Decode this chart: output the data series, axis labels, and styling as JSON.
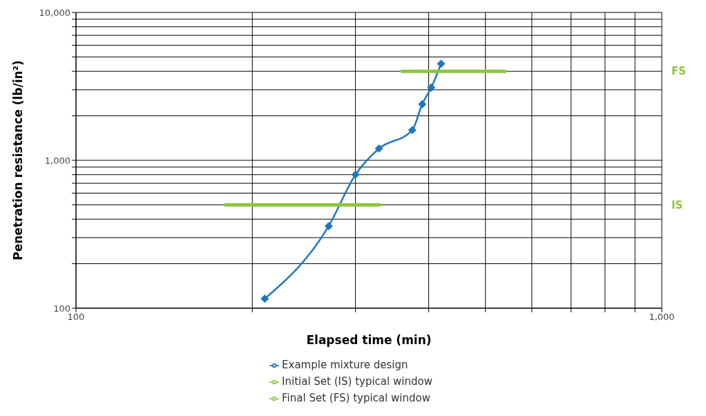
{
  "chart_data": {
    "type": "line",
    "xlabel": "Elapsed time (min)",
    "ylabel": "Penetration resistance (lb/in²)",
    "log": "xy",
    "xlim": [
      100,
      1000
    ],
    "ylim": [
      100,
      10000
    ],
    "xticks": [
      {
        "value": 100,
        "label": "100"
      },
      {
        "value": 200,
        "label": null
      },
      {
        "value": 300,
        "label": null
      },
      {
        "value": 400,
        "label": null
      },
      {
        "value": 500,
        "label": null
      },
      {
        "value": 600,
        "label": null
      },
      {
        "value": 700,
        "label": null
      },
      {
        "value": 800,
        "label": null
      },
      {
        "value": 900,
        "label": null
      },
      {
        "value": 1000,
        "label": "1,000"
      }
    ],
    "yticks": [
      {
        "value": 100,
        "label": "100"
      },
      {
        "value": 200,
        "label": null
      },
      {
        "value": 300,
        "label": null
      },
      {
        "value": 400,
        "label": null
      },
      {
        "value": 500,
        "label": null
      },
      {
        "value": 600,
        "label": null
      },
      {
        "value": 700,
        "label": null
      },
      {
        "value": 800,
        "label": null
      },
      {
        "value": 900,
        "label": null
      },
      {
        "value": 1000,
        "label": "1,000"
      },
      {
        "value": 2000,
        "label": null
      },
      {
        "value": 3000,
        "label": null
      },
      {
        "value": 4000,
        "label": null
      },
      {
        "value": 5000,
        "label": null
      },
      {
        "value": 6000,
        "label": null
      },
      {
        "value": 7000,
        "label": null
      },
      {
        "value": 8000,
        "label": null
      },
      {
        "value": 9000,
        "label": null
      },
      {
        "value": 10000,
        "label": "10,000"
      }
    ],
    "grid": true,
    "legend": "bottom",
    "series": [
      {
        "name": "Example mixture design",
        "color": "#1f77c0",
        "marker": "diamond",
        "line_style": "solid",
        "x": [
          210,
          270,
          300,
          329,
          375,
          390,
          404,
          420
        ],
        "values": [
          116,
          359,
          800,
          1200,
          1600,
          2400,
          3100,
          4500
        ]
      },
      {
        "name": "Initial Set (IS) typical window",
        "color": "#8dc63f",
        "marker": "none",
        "line_style": "solid",
        "x": [
          180,
          330
        ],
        "values": [
          500,
          500
        ]
      },
      {
        "name": "Final Set (FS) typical window",
        "color": "#8dc63f",
        "marker": "none",
        "line_style": "solid",
        "x": [
          360,
          540
        ],
        "values": [
          4000,
          4000
        ]
      }
    ],
    "annotations": [
      "FS",
      "IS"
    ]
  }
}
